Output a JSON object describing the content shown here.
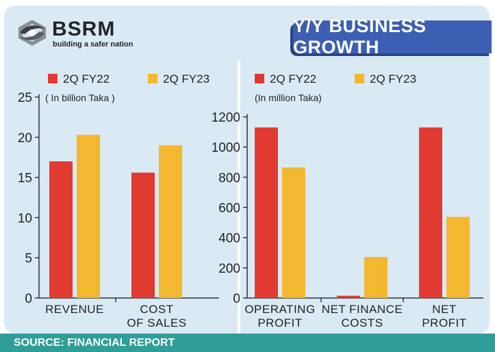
{
  "brand": {
    "name": "BSRM",
    "tagline": "building a safer nation"
  },
  "header": {
    "title": "Y/Y BUSINESS GROWTH"
  },
  "footer": {
    "source": "SOURCE: FINANCIAL REPORT"
  },
  "colors": {
    "fy22": "#e03a31",
    "fy23": "#f4b730",
    "title_bg": "#3c5fb4",
    "panel_bg": "#daeaf5",
    "footer_bg": "#2f9e98"
  },
  "chart_data": [
    {
      "type": "bar",
      "unit_label": "( In billion Taka )",
      "categories": [
        [
          "REVENUE"
        ],
        [
          "COST",
          "OF SALES"
        ]
      ],
      "series": [
        {
          "name": "2Q FY22",
          "values": [
            17.0,
            15.6
          ]
        },
        {
          "name": "2Q FY23",
          "values": [
            20.3,
            19.0
          ]
        }
      ],
      "ylim": [
        0,
        25
      ],
      "yticks": [
        0,
        5,
        10,
        15,
        20,
        25
      ],
      "legend": "top"
    },
    {
      "type": "bar",
      "unit_label": "(In million Taka)",
      "categories": [
        [
          "OPERATING",
          "PROFIT"
        ],
        [
          "NET FINANCE",
          "COSTS"
        ],
        [
          "NET",
          "PROFIT"
        ]
      ],
      "series": [
        {
          "name": "2Q FY22",
          "values": [
            1130,
            15,
            1130
          ]
        },
        {
          "name": "2Q FY23",
          "values": [
            865,
            272,
            537
          ]
        }
      ],
      "ylim": [
        0,
        1200
      ],
      "yticks": [
        0,
        200,
        400,
        600,
        800,
        1000,
        1200
      ],
      "legend": "top"
    }
  ]
}
